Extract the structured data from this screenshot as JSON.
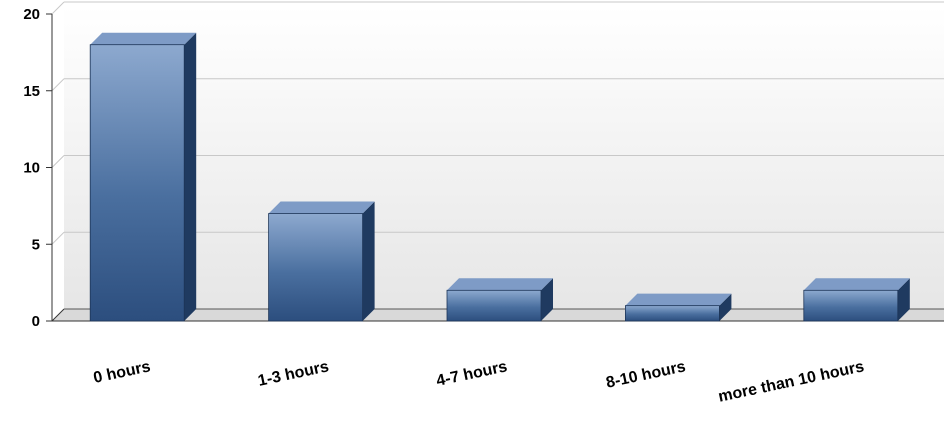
{
  "chart_data": {
    "type": "bar",
    "categories": [
      "0 hours",
      "1-3 hours",
      "4-7 hours",
      "8-10 hours",
      "more than 10 hours"
    ],
    "values": [
      18,
      7,
      2,
      1,
      2
    ],
    "ylim": [
      0,
      20
    ],
    "yticks": [
      0,
      5,
      10,
      15,
      20
    ],
    "ytick_labels": [
      "0",
      "5",
      "10",
      "15",
      "20"
    ],
    "grid": true,
    "legend": "none",
    "bar_style": "3d",
    "colors": {
      "bar_top": "#8da9cf",
      "bar_mid": "#4a6f9f",
      "bar_bottom": "#2c4e7e",
      "bar_side": "#1f3a60",
      "bar_cap": "#7e9bc6",
      "plot_bg_top": "#ffffff",
      "plot_bg_bottom": "#e6e6e6",
      "grid": "#c8c8c8",
      "axis": "#333333"
    }
  }
}
